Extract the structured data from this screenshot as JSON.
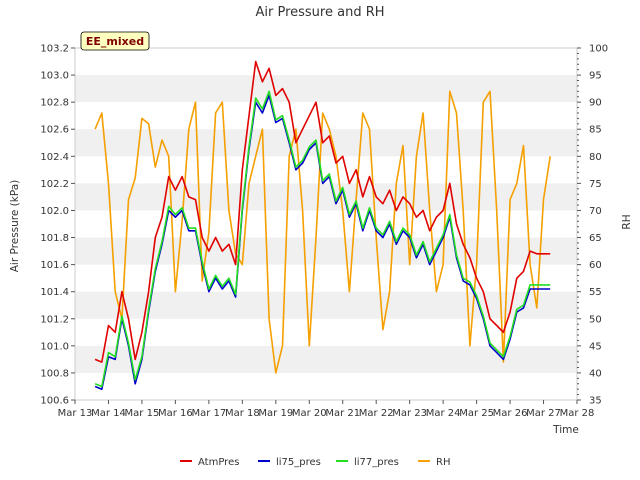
{
  "chart_data": {
    "type": "line",
    "title": "Air Pressure and RH",
    "badge": "EE_mixed",
    "xlabel": "Time",
    "ylabel": "Air Pressure (kPa)",
    "y2label": "RH",
    "xlim": [
      13,
      28
    ],
    "ylim": [
      100.6,
      103.2
    ],
    "y2lim": [
      35,
      100
    ],
    "x_ticks": [
      "Mar 13",
      "Mar 14",
      "Mar 15",
      "Mar 16",
      "Mar 17",
      "Mar 18",
      "Mar 19",
      "Mar 20",
      "Mar 21",
      "Mar 22",
      "Mar 23",
      "Mar 24",
      "Mar 25",
      "Mar 26",
      "Mar 27",
      "Mar 28"
    ],
    "y_ticks": [
      "100.6",
      "100.8",
      "101.0",
      "101.2",
      "101.4",
      "101.6",
      "101.8",
      "102.0",
      "102.2",
      "102.4",
      "102.6",
      "102.8",
      "103.0",
      "103.2"
    ],
    "y2_ticks": [
      "35",
      "40",
      "45",
      "50",
      "55",
      "60",
      "65",
      "70",
      "75",
      "80",
      "85",
      "90",
      "95",
      "100"
    ],
    "grid": "horizontal bands",
    "legend_position": "bottom",
    "colors": {
      "AtmPres": "#e00000",
      "li75_pres": "#0000cc",
      "li77_pres": "#22dd22",
      "RH": "#f5a000",
      "band": "#f0f0f0",
      "badge_bg": "#ffffc0",
      "badge_text": "#800000"
    },
    "series": [
      {
        "name": "AtmPres",
        "axis": "left",
        "x": [
          13.6,
          13.8,
          14.0,
          14.2,
          14.4,
          14.6,
          14.8,
          15.0,
          15.2,
          15.4,
          15.6,
          15.8,
          16.0,
          16.2,
          16.4,
          16.6,
          16.8,
          17.0,
          17.2,
          17.4,
          17.6,
          17.8,
          18.0,
          18.2,
          18.4,
          18.6,
          18.8,
          19.0,
          19.2,
          19.4,
          19.6,
          19.8,
          20.0,
          20.2,
          20.4,
          20.6,
          20.8,
          21.0,
          21.2,
          21.4,
          21.6,
          21.8,
          22.0,
          22.2,
          22.4,
          22.6,
          22.8,
          23.0,
          23.2,
          23.4,
          23.6,
          23.8,
          24.0,
          24.2,
          24.4,
          24.6,
          24.8,
          25.0,
          25.2,
          25.4,
          25.6,
          25.8,
          26.0,
          26.2,
          26.4,
          26.6,
          26.8,
          27.0,
          27.2
        ],
        "values": [
          100.9,
          100.88,
          101.15,
          101.1,
          101.4,
          101.2,
          100.9,
          101.1,
          101.4,
          101.8,
          101.95,
          102.25,
          102.15,
          102.25,
          102.1,
          102.08,
          101.8,
          101.7,
          101.8,
          101.7,
          101.75,
          101.6,
          102.3,
          102.7,
          103.1,
          102.95,
          103.05,
          102.85,
          102.9,
          102.8,
          102.5,
          102.6,
          102.7,
          102.8,
          102.5,
          102.55,
          102.35,
          102.4,
          102.2,
          102.3,
          102.1,
          102.25,
          102.1,
          102.05,
          102.15,
          102.0,
          102.1,
          102.05,
          101.95,
          102.0,
          101.85,
          101.95,
          102.0,
          102.2,
          101.9,
          101.75,
          101.65,
          101.5,
          101.4,
          101.2,
          101.15,
          101.1,
          101.25,
          101.5,
          101.55,
          101.7,
          101.68,
          101.68,
          101.68
        ]
      },
      {
        "name": "li75_pres",
        "axis": "left",
        "x": [
          13.6,
          13.8,
          14.0,
          14.2,
          14.4,
          14.6,
          14.8,
          15.0,
          15.2,
          15.4,
          15.6,
          15.8,
          16.0,
          16.2,
          16.4,
          16.6,
          16.8,
          17.0,
          17.2,
          17.4,
          17.6,
          17.8,
          18.0,
          18.2,
          18.4,
          18.6,
          18.8,
          19.0,
          19.2,
          19.4,
          19.6,
          19.8,
          20.0,
          20.2,
          20.4,
          20.6,
          20.8,
          21.0,
          21.2,
          21.4,
          21.6,
          21.8,
          22.0,
          22.2,
          22.4,
          22.6,
          22.8,
          23.0,
          23.2,
          23.4,
          23.6,
          23.8,
          24.0,
          24.2,
          24.4,
          24.6,
          24.8,
          25.0,
          25.2,
          25.4,
          25.6,
          25.8,
          26.0,
          26.2,
          26.4,
          26.6,
          26.8,
          27.0,
          27.2
        ],
        "values": [
          100.7,
          100.68,
          100.92,
          100.9,
          101.2,
          101.0,
          100.72,
          100.9,
          101.25,
          101.55,
          101.75,
          102.0,
          101.95,
          102.0,
          101.85,
          101.85,
          101.6,
          101.4,
          101.5,
          101.42,
          101.48,
          101.36,
          102.0,
          102.45,
          102.8,
          102.72,
          102.85,
          102.65,
          102.68,
          102.5,
          102.3,
          102.35,
          102.45,
          102.5,
          102.2,
          102.25,
          102.05,
          102.15,
          101.95,
          102.05,
          101.85,
          102.0,
          101.85,
          101.8,
          101.9,
          101.75,
          101.85,
          101.8,
          101.65,
          101.75,
          101.6,
          101.7,
          101.8,
          101.95,
          101.65,
          101.48,
          101.45,
          101.35,
          101.2,
          101.0,
          100.95,
          100.9,
          101.05,
          101.25,
          101.28,
          101.42,
          101.42,
          101.42,
          101.42
        ]
      },
      {
        "name": "li77_pres",
        "axis": "left",
        "x": [
          13.6,
          13.8,
          14.0,
          14.2,
          14.4,
          14.6,
          14.8,
          15.0,
          15.2,
          15.4,
          15.6,
          15.8,
          16.0,
          16.2,
          16.4,
          16.6,
          16.8,
          17.0,
          17.2,
          17.4,
          17.6,
          17.8,
          18.0,
          18.2,
          18.4,
          18.6,
          18.8,
          19.0,
          19.2,
          19.4,
          19.6,
          19.8,
          20.0,
          20.2,
          20.4,
          20.6,
          20.8,
          21.0,
          21.2,
          21.4,
          21.6,
          21.8,
          22.0,
          22.2,
          22.4,
          22.6,
          22.8,
          23.0,
          23.2,
          23.4,
          23.6,
          23.8,
          24.0,
          24.2,
          24.4,
          24.6,
          24.8,
          25.0,
          25.2,
          25.4,
          25.6,
          25.8,
          26.0,
          26.2,
          26.4,
          26.6,
          26.8,
          27.0,
          27.2
        ],
        "values": [
          100.72,
          100.7,
          100.95,
          100.92,
          101.22,
          101.02,
          100.75,
          100.92,
          101.27,
          101.57,
          101.77,
          102.03,
          101.97,
          102.02,
          101.87,
          101.87,
          101.62,
          101.42,
          101.52,
          101.44,
          101.5,
          101.38,
          102.02,
          102.47,
          102.83,
          102.75,
          102.88,
          102.67,
          102.7,
          102.52,
          102.32,
          102.37,
          102.47,
          102.52,
          102.22,
          102.27,
          102.07,
          102.17,
          101.97,
          102.07,
          101.87,
          102.02,
          101.87,
          101.82,
          101.92,
          101.77,
          101.87,
          101.82,
          101.67,
          101.77,
          101.62,
          101.72,
          101.82,
          101.97,
          101.67,
          101.5,
          101.47,
          101.37,
          101.22,
          101.02,
          100.97,
          100.92,
          101.07,
          101.27,
          101.3,
          101.45,
          101.45,
          101.45,
          101.45
        ]
      },
      {
        "name": "RH",
        "axis": "right",
        "x": [
          13.6,
          13.8,
          14.0,
          14.2,
          14.4,
          14.6,
          14.8,
          15.0,
          15.2,
          15.4,
          15.6,
          15.8,
          16.0,
          16.2,
          16.4,
          16.6,
          16.8,
          17.0,
          17.2,
          17.4,
          17.6,
          17.8,
          18.0,
          18.2,
          18.4,
          18.6,
          18.8,
          19.0,
          19.2,
          19.4,
          19.6,
          19.8,
          20.0,
          20.2,
          20.4,
          20.6,
          20.8,
          21.0,
          21.2,
          21.4,
          21.6,
          21.8,
          22.0,
          22.2,
          22.4,
          22.6,
          22.8,
          23.0,
          23.2,
          23.4,
          23.6,
          23.8,
          24.0,
          24.2,
          24.4,
          24.6,
          24.8,
          25.0,
          25.2,
          25.4,
          25.6,
          25.8,
          26.0,
          26.2,
          26.4,
          26.6,
          26.8,
          27.0,
          27.2
        ],
        "values": [
          85,
          88,
          75,
          55,
          50,
          72,
          76,
          87,
          86,
          78,
          83,
          80,
          55,
          68,
          85,
          90,
          57,
          66,
          88,
          90,
          70,
          62,
          60,
          75,
          80,
          85,
          50,
          40,
          45,
          80,
          85,
          70,
          45,
          65,
          88,
          85,
          80,
          70,
          55,
          72,
          88,
          85,
          65,
          48,
          55,
          75,
          82,
          60,
          80,
          88,
          70,
          55,
          60,
          92,
          88,
          70,
          45,
          60,
          90,
          92,
          70,
          42,
          72,
          75,
          82,
          60,
          52,
          72,
          80
        ]
      }
    ]
  }
}
